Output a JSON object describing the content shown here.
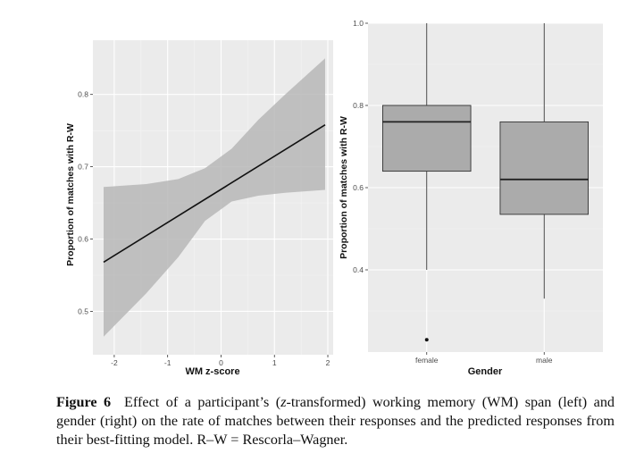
{
  "chart_data": [
    {
      "type": "line",
      "title": "",
      "xlabel": "WM z-score",
      "ylabel": "Proportion of matches with R-W",
      "xlim": [
        -2.4,
        2.1
      ],
      "ylim": [
        0.44,
        0.875
      ],
      "xticks": [
        -2,
        -1,
        0,
        1,
        2
      ],
      "yticks": [
        0.5,
        0.6,
        0.7,
        0.8
      ],
      "x": [
        -2.2,
        1.95
      ],
      "y": [
        0.568,
        0.758
      ],
      "ribbon": {
        "x": [
          -2.2,
          -1.4,
          -0.8,
          -0.3,
          0.2,
          0.7,
          1.2,
          1.95
        ],
        "lower": [
          0.465,
          0.525,
          0.575,
          0.625,
          0.652,
          0.66,
          0.664,
          0.668
        ],
        "upper": [
          0.672,
          0.676,
          0.683,
          0.698,
          0.725,
          0.765,
          0.8,
          0.85
        ]
      },
      "grid": true
    },
    {
      "type": "box",
      "title": "",
      "xlabel": "Gender",
      "ylabel": "Proportion of matches with R-W",
      "ylim": [
        0.2,
        1.0
      ],
      "yticks": [
        0.4,
        0.6,
        0.8,
        1.0
      ],
      "categories": [
        "female",
        "male"
      ],
      "boxes": [
        {
          "min": 0.4,
          "q1": 0.64,
          "median": 0.76,
          "q3": 0.8,
          "max": 1.0,
          "outliers": [
            0.23
          ]
        },
        {
          "min": 0.33,
          "q1": 0.535,
          "median": 0.62,
          "q3": 0.76,
          "max": 1.0,
          "outliers": []
        }
      ],
      "grid": true
    }
  ],
  "caption": {
    "label": "Figure 6",
    "text_pre": "Effect of a participant’s (",
    "text_italic": "z",
    "text_post": "-transformed) working memory (WM) span (left) and gender (right) on the rate of matches between their responses and the predicted responses from their best-fitting model. R–W = Rescorla–Wagner."
  }
}
